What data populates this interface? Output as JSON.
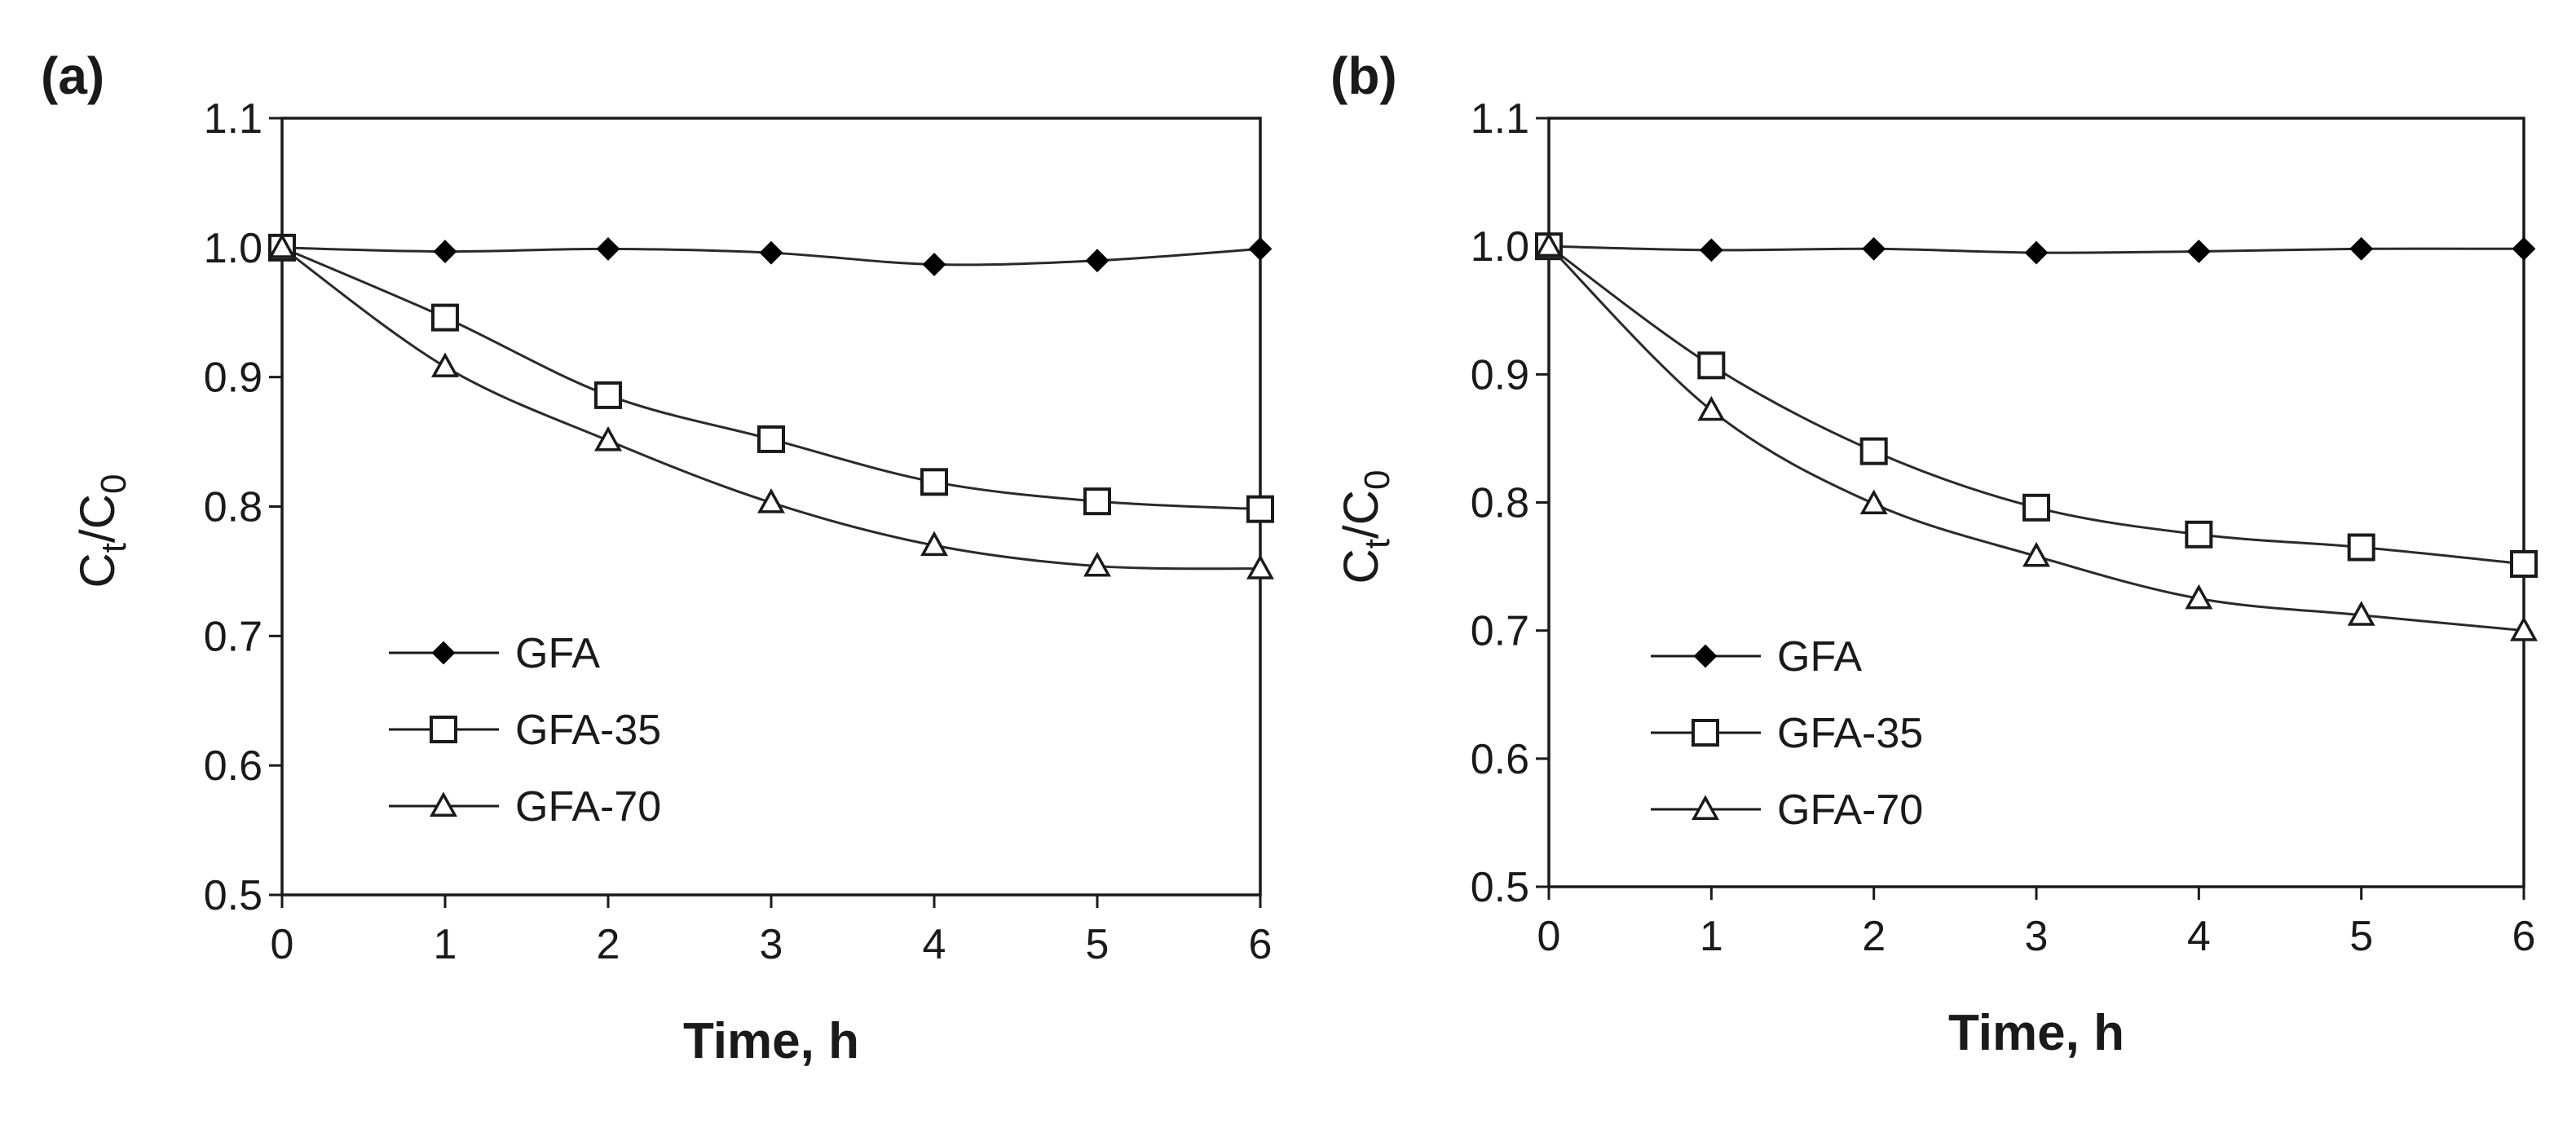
{
  "chart_data": [
    {
      "type": "line",
      "panel_label": "(a)",
      "xlabel": "Time, h",
      "ylabel": "Ct/C0",
      "ylabel_main": "C",
      "ylabel_sub1": "t",
      "ylabel_sep": "/C",
      "ylabel_sub2": "0",
      "x": [
        0,
        1,
        2,
        3,
        4,
        5,
        6
      ],
      "xlim": [
        0,
        6
      ],
      "ylim": [
        0.5,
        1.1
      ],
      "xticks": [
        "0",
        "1",
        "2",
        "3",
        "4",
        "5",
        "6"
      ],
      "yticks": [
        "0.5",
        "0.6",
        "0.7",
        "0.8",
        "0.9",
        "1.0",
        "1.1"
      ],
      "grid": false,
      "legend_position": "lower-left",
      "series": [
        {
          "name": "GFA",
          "marker": "diamond",
          "values": [
            1.0,
            0.997,
            0.999,
            0.996,
            0.987,
            0.99,
            0.999
          ]
        },
        {
          "name": "GFA-35",
          "marker": "square",
          "values": [
            1.0,
            0.946,
            0.886,
            0.852,
            0.819,
            0.804,
            0.798
          ]
        },
        {
          "name": "GFA-70",
          "marker": "triangle",
          "values": [
            1.0,
            0.908,
            0.851,
            0.803,
            0.77,
            0.754,
            0.752
          ]
        }
      ]
    },
    {
      "type": "line",
      "panel_label": "(b)",
      "xlabel": "Time, h",
      "ylabel": "Ct/C0",
      "ylabel_main": "C",
      "ylabel_sub1": "t",
      "ylabel_sep": "/C",
      "ylabel_sub2": "0",
      "x": [
        0,
        1,
        2,
        3,
        4,
        5,
        6
      ],
      "xlim": [
        0,
        6
      ],
      "ylim": [
        0.5,
        1.1
      ],
      "xticks": [
        "0",
        "1",
        "2",
        "3",
        "4",
        "5",
        "6"
      ],
      "yticks": [
        "0.5",
        "0.6",
        "0.7",
        "0.8",
        "0.9",
        "1.0",
        "1.1"
      ],
      "grid": false,
      "legend_position": "lower-left",
      "series": [
        {
          "name": "GFA",
          "marker": "diamond",
          "values": [
            1.0,
            0.997,
            0.998,
            0.995,
            0.996,
            0.998,
            0.998
          ]
        },
        {
          "name": "GFA-35",
          "marker": "square",
          "values": [
            1.0,
            0.907,
            0.84,
            0.796,
            0.775,
            0.765,
            0.752
          ]
        },
        {
          "name": "GFA-70",
          "marker": "triangle",
          "values": [
            1.0,
            0.872,
            0.799,
            0.758,
            0.725,
            0.712,
            0.7
          ]
        }
      ]
    }
  ]
}
